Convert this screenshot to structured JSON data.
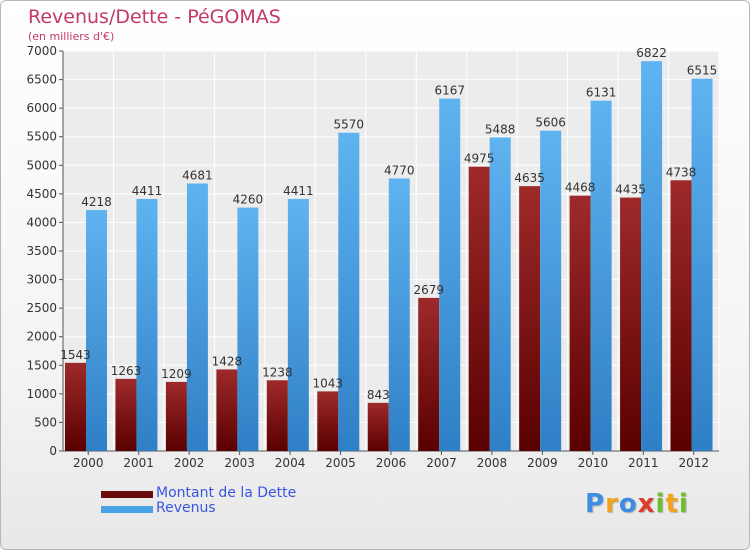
{
  "page": {
    "title": "Revenus/Dette - PéGOMAS",
    "subtitle": "(en milliers d'€)"
  },
  "chart_data": {
    "type": "bar",
    "categories": [
      "2000",
      "2001",
      "2002",
      "2003",
      "2004",
      "2005",
      "2006",
      "2007",
      "2008",
      "2009",
      "2010",
      "2011",
      "2012"
    ],
    "series": [
      {
        "name": "Montant de la Dette",
        "color": "#8b1a1a",
        "values": [
          1543,
          1263,
          1209,
          1428,
          1238,
          1043,
          843,
          2679,
          4975,
          4635,
          4468,
          4435,
          4738
        ],
        "labels": [
          "1543",
          "1263",
          "1209",
          "1428",
          "1238",
          "1043",
          "843",
          "2679",
          "4975",
          "4635",
          "4468",
          "4435",
          "4738"
        ]
      },
      {
        "name": "Revenus",
        "color": "#4aa3e6",
        "values": [
          4218,
          4411,
          4681,
          4260,
          4411,
          5570,
          4770,
          6167,
          5488,
          5606,
          6131,
          6822,
          6515
        ],
        "labels": [
          "4218",
          "4411",
          "4681",
          "4260",
          "4411",
          "5570",
          "4770",
          "6167",
          "5488",
          "5606",
          "6131",
          "6822",
          "6515"
        ]
      }
    ],
    "ylim": [
      0,
      7000
    ],
    "yticks": [
      0,
      500,
      1000,
      1500,
      2000,
      2500,
      3000,
      3500,
      4000,
      4500,
      5000,
      5500,
      6000,
      6500,
      7000
    ],
    "grid": true,
    "legend_position": "bottom-left"
  },
  "legend": {
    "items": [
      {
        "label": "Montant de la Dette",
        "color": "#6b0a0a"
      },
      {
        "label": "Revenus",
        "color": "#4aa3e6"
      }
    ]
  },
  "logo": {
    "letters": [
      "P",
      "r",
      "o",
      "x",
      "i",
      "t",
      "i"
    ],
    "colors": [
      "#3d8ee0",
      "#f2a21c",
      "#3d8ee0",
      "#e03a2a",
      "#6cbf2c",
      "#f2a21c",
      "#6cbf2c"
    ]
  }
}
